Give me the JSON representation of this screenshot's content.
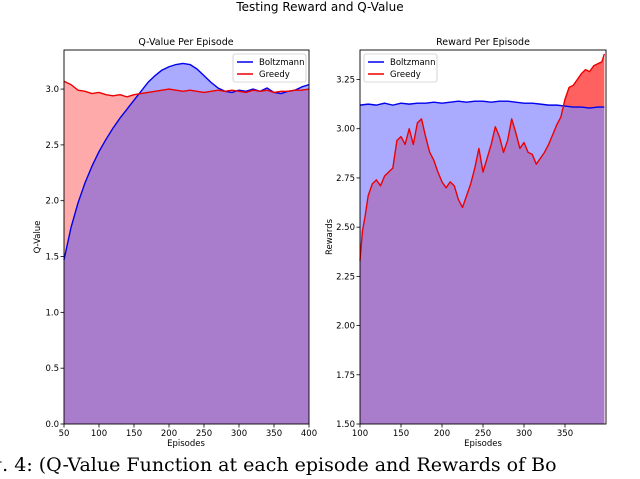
{
  "figure": {
    "suptitle": "Testing Reward and Q-Value",
    "caption": "g. 4: (Q-Value Function at each episode and Rewards of Bo"
  },
  "colors": {
    "blue": "#0000ee",
    "red": "#ee0000",
    "blue_fill": "#aaaaff",
    "red_fill": "#ffaaaa",
    "overlap": "#aa7dcc",
    "red_fill_strong": "#ff6060"
  },
  "chart_data": [
    {
      "type": "area",
      "title": "Q-Value Per Episode",
      "xlabel": "Episodes",
      "ylabel": "Q-Value",
      "xlim": [
        50,
        400
      ],
      "ylim": [
        0.0,
        3.35
      ],
      "xticks": [
        "50",
        "100",
        "150",
        "200",
        "250",
        "300",
        "350",
        "400"
      ],
      "yticks": [
        "0.0",
        "0.5",
        "1.0",
        "1.5",
        "2.0",
        "2.5",
        "3.0"
      ],
      "legend": {
        "position": "top-right",
        "entries": [
          "Boltzmann",
          "Greedy"
        ]
      },
      "series": [
        {
          "name": "Boltzmann",
          "color": "blue",
          "x": [
            50,
            60,
            70,
            80,
            90,
            100,
            110,
            120,
            130,
            140,
            150,
            160,
            170,
            180,
            190,
            200,
            210,
            220,
            230,
            240,
            250,
            260,
            270,
            280,
            290,
            300,
            310,
            320,
            330,
            340,
            350,
            360,
            370,
            380,
            390,
            400
          ],
          "y": [
            1.47,
            1.76,
            1.98,
            2.16,
            2.31,
            2.44,
            2.55,
            2.65,
            2.74,
            2.82,
            2.9,
            2.98,
            3.06,
            3.12,
            3.17,
            3.2,
            3.22,
            3.23,
            3.22,
            3.18,
            3.12,
            3.06,
            3.01,
            2.98,
            2.97,
            2.99,
            2.98,
            3.0,
            2.98,
            3.01,
            2.97,
            2.96,
            2.98,
            2.99,
            3.02,
            3.04
          ]
        },
        {
          "name": "Greedy",
          "color": "red",
          "x": [
            50,
            60,
            70,
            80,
            90,
            100,
            110,
            120,
            130,
            140,
            150,
            160,
            170,
            180,
            190,
            200,
            210,
            220,
            230,
            240,
            250,
            260,
            270,
            280,
            290,
            300,
            310,
            320,
            330,
            340,
            350,
            360,
            370,
            380,
            390,
            400
          ],
          "y": [
            3.07,
            3.04,
            2.99,
            2.98,
            2.96,
            2.97,
            2.95,
            2.94,
            2.95,
            2.93,
            2.95,
            2.96,
            2.97,
            2.98,
            2.99,
            3.0,
            2.99,
            2.98,
            2.99,
            2.98,
            2.97,
            2.98,
            2.99,
            2.98,
            2.99,
            2.98,
            2.97,
            2.99,
            2.98,
            2.99,
            2.97,
            2.98,
            2.98,
            2.99,
            2.99,
            3.0
          ]
        }
      ]
    },
    {
      "type": "area",
      "title": "Reward Per Episode",
      "xlabel": "Episodes",
      "ylabel": "Rewards",
      "xlim": [
        100,
        400
      ],
      "ylim": [
        1.5,
        3.4
      ],
      "xticks": [
        "100",
        "150",
        "200",
        "250",
        "300",
        "350"
      ],
      "yticks": [
        "1.50",
        "1.75",
        "2.00",
        "2.25",
        "2.50",
        "2.75",
        "3.00",
        "3.25"
      ],
      "legend": {
        "position": "top-left",
        "entries": [
          "Boltzmann",
          "Greedy"
        ]
      },
      "series": [
        {
          "name": "Boltzmann",
          "color": "blue",
          "x": [
            100,
            110,
            120,
            130,
            140,
            150,
            160,
            170,
            180,
            190,
            200,
            210,
            220,
            230,
            240,
            250,
            260,
            270,
            280,
            290,
            300,
            310,
            320,
            330,
            340,
            350,
            360,
            370,
            380,
            390,
            398
          ],
          "y": [
            3.12,
            3.125,
            3.12,
            3.13,
            3.12,
            3.13,
            3.125,
            3.13,
            3.13,
            3.135,
            3.13,
            3.135,
            3.14,
            3.135,
            3.14,
            3.14,
            3.135,
            3.14,
            3.14,
            3.135,
            3.13,
            3.13,
            3.125,
            3.12,
            3.12,
            3.115,
            3.11,
            3.11,
            3.105,
            3.11,
            3.11
          ]
        },
        {
          "name": "Greedy",
          "color": "red",
          "x": [
            100,
            103,
            106,
            110,
            115,
            120,
            125,
            130,
            135,
            140,
            145,
            150,
            155,
            160,
            165,
            170,
            175,
            180,
            185,
            190,
            195,
            200,
            205,
            210,
            215,
            220,
            225,
            230,
            235,
            240,
            245,
            250,
            255,
            260,
            265,
            270,
            275,
            280,
            285,
            290,
            295,
            300,
            305,
            310,
            315,
            320,
            325,
            330,
            335,
            340,
            345,
            350,
            355,
            360,
            365,
            370,
            375,
            380,
            385,
            390,
            395,
            398
          ],
          "y": [
            2.33,
            2.48,
            2.55,
            2.66,
            2.72,
            2.74,
            2.71,
            2.76,
            2.78,
            2.8,
            2.94,
            2.96,
            2.92,
            3.0,
            2.92,
            3.03,
            3.05,
            2.96,
            2.88,
            2.84,
            2.78,
            2.73,
            2.7,
            2.73,
            2.71,
            2.64,
            2.6,
            2.66,
            2.72,
            2.8,
            2.9,
            2.78,
            2.85,
            2.92,
            3.01,
            2.96,
            2.88,
            2.94,
            3.05,
            2.98,
            2.9,
            2.93,
            2.88,
            2.87,
            2.82,
            2.85,
            2.88,
            2.92,
            2.97,
            3.02,
            3.06,
            3.15,
            3.21,
            3.22,
            3.25,
            3.28,
            3.3,
            3.29,
            3.32,
            3.33,
            3.34,
            3.38
          ]
        }
      ]
    }
  ]
}
